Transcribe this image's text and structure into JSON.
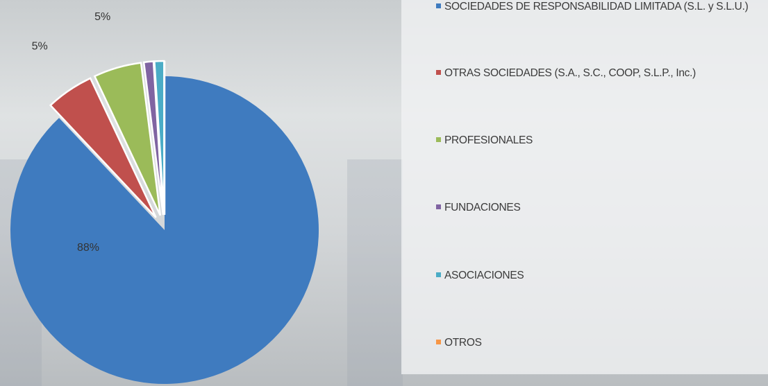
{
  "chart_data": {
    "type": "pie",
    "categories": [
      "SOCIEDADES DE RESPONSABILIDAD LIMITADA (S.L. y S.L.U.)",
      "OTRAS SOCIEDADES (S.A., S.C., COOP, S.L.P., Inc.)",
      "PROFESIONALES",
      "FUNDACIONES",
      "ASOCIACIONES",
      "OTROS"
    ],
    "values": [
      88,
      5,
      5,
      1,
      1,
      0
    ],
    "value_labels": [
      "88%",
      "5%",
      "5%",
      null,
      null,
      null
    ],
    "colors": [
      "#3f7bbf",
      "#c0504d",
      "#9bbb59",
      "#8064a2",
      "#4bacc6",
      "#f79646"
    ],
    "legend": "right"
  }
}
